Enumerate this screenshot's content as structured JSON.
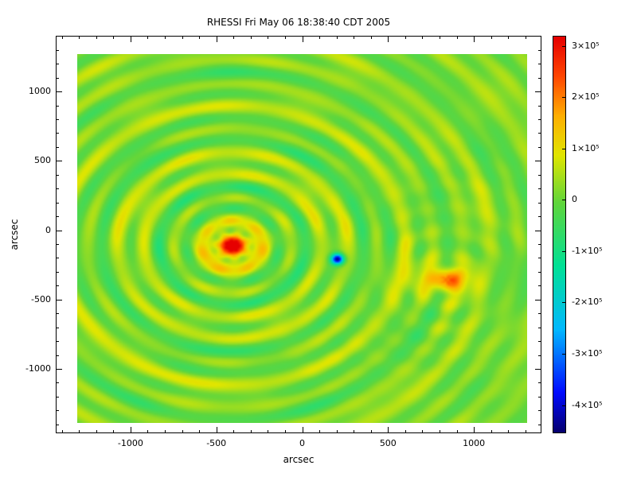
{
  "title": "RHESSI Fri May 06 18:38:40 CDT 2005",
  "axes": {
    "xlabel": "arcsec",
    "ylabel": "arcsec",
    "x_ticks": [
      -1000,
      -500,
      0,
      500,
      1000
    ],
    "y_ticks": [
      -1000,
      -500,
      0,
      500,
      1000
    ],
    "minor_tick_step": 100
  },
  "colorbar": {
    "labels": [
      "3×10⁵",
      "2×10⁵",
      "1×10⁵",
      "0",
      "-1×10⁵",
      "-2×10⁵",
      "-3×10⁵",
      "-4×10⁵"
    ],
    "values": [
      300000,
      200000,
      100000,
      0,
      -100000,
      -200000,
      -300000,
      -400000
    ],
    "vmin": -455000,
    "vmax": 320000
  },
  "chart_data": {
    "type": "heatmap",
    "description": "RHESSI back-projection (dirty) solar map with concentric sidelobe ripple rings",
    "units": "arcsec",
    "xlim": [
      -1310,
      1310
    ],
    "ylim": [
      -1390,
      1270
    ],
    "value_range": [
      -455000,
      320000
    ],
    "background_level": 15000,
    "sources": [
      {
        "name": "primary",
        "x": -406,
        "y": -111,
        "amplitude": 320000,
        "sigma": 62,
        "stretch_x": 1.15
      },
      {
        "name": "negative",
        "x": 206,
        "y": -209,
        "amplitude": -455000,
        "sigma": 26,
        "stretch_x": 1.0
      },
      {
        "name": "secondary",
        "x": 842,
        "y": -358,
        "amplitude": 215000,
        "sigma": 70,
        "stretch_x": 1.35
      }
    ],
    "ripples": [
      {
        "center": "primary",
        "wavelength": 165,
        "amplitude": 70000,
        "decay": 1800,
        "phase": -0.67,
        "az_strength": 0.32,
        "az_order": 7
      },
      {
        "center": "primary",
        "wavelength": 430,
        "amplitude": 35000,
        "decay": 2500,
        "phase": 3.8,
        "az_strength": 0.25,
        "az_order": 3
      },
      {
        "center": "secondary",
        "wavelength": 170,
        "amplitude": 35000,
        "decay": 380,
        "phase": -0.6,
        "az_strength": 0.3,
        "az_order": 5
      }
    ],
    "texture": [
      {
        "amp": 12000,
        "sx": 170,
        "sy": 140,
        "px": 1.3,
        "py": 0.7
      },
      {
        "amp": 9000,
        "sx": 78,
        "sy": 96,
        "px": 4.1,
        "py": 2.0
      }
    ],
    "colormap": [
      {
        "t": 0.0,
        "color": [
          6,
          0,
          112
        ]
      },
      {
        "t": 0.1,
        "color": [
          0,
          10,
          255
        ]
      },
      {
        "t": 0.26,
        "color": [
          0,
          185,
          255
        ]
      },
      {
        "t": 0.42,
        "color": [
          0,
          225,
          150
        ]
      },
      {
        "t": 0.58,
        "color": [
          96,
          214,
          60
        ]
      },
      {
        "t": 0.7,
        "color": [
          225,
          230,
          0
        ]
      },
      {
        "t": 0.8,
        "color": [
          255,
          175,
          0
        ]
      },
      {
        "t": 0.9,
        "color": [
          255,
          70,
          0
        ]
      },
      {
        "t": 1.0,
        "color": [
          230,
          0,
          0
        ]
      }
    ]
  }
}
